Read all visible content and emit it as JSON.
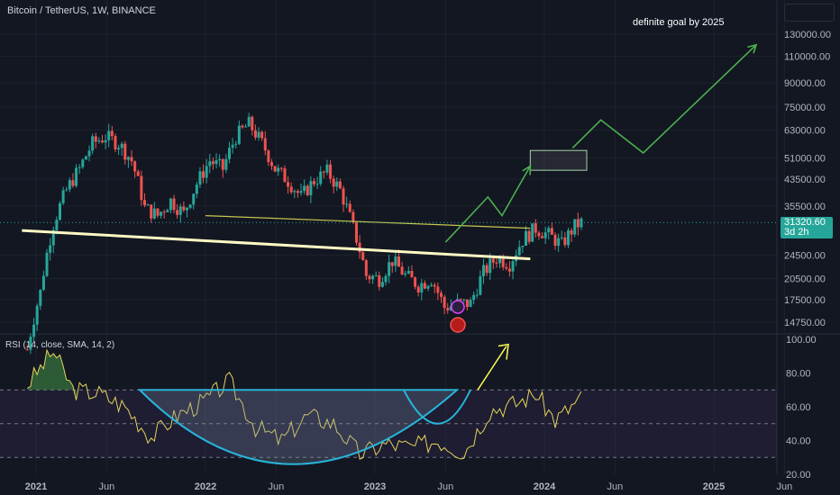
{
  "header": {
    "symbol_title": "Bitcoin / TetherUS, 1W, BINANCE"
  },
  "annotation": {
    "goal_text": "definite goal by 2025"
  },
  "price_tag": {
    "price": "31320.60",
    "countdown": "3d 2h",
    "color": "#26a69a"
  },
  "rsi_panel": {
    "title": "RSI (14, close, SMA, 14, 2)"
  },
  "chart_data": [
    {
      "type": "candlestick",
      "symbol": "BTCUSDT",
      "interval": "1W",
      "y_scale": "log",
      "ylim": [
        12000,
        150000
      ],
      "y_ticks": [
        "130000.00",
        "110000.00",
        "90000.00",
        "75000.00",
        "63000.00",
        "51000.00",
        "43500.00",
        "35500.00",
        "24500.00",
        "20500.00",
        "17500.00",
        "14750.00"
      ],
      "x_ticks": [
        "2021",
        "Jun",
        "2022",
        "Jun",
        "2023",
        "Jun",
        "2024",
        "Jun",
        "2025",
        "Jun"
      ],
      "last_price": 31320.6,
      "colors": {
        "up": "#26a69a",
        "down": "#ef5350"
      },
      "trendlines": [
        {
          "from": [
            "2020-12",
            29500
          ],
          "to": [
            "2023-12",
            23800
          ],
          "color": "#fff9c4"
        },
        {
          "from": [
            "2022-01",
            33000
          ],
          "to": [
            "2023-12",
            30000
          ],
          "color": "#c8c850"
        }
      ],
      "projection_path": [
        [
          "2023-06",
          27000
        ],
        [
          "2023-09",
          38000
        ],
        [
          "2023-10",
          33000
        ],
        [
          "2023-12",
          48000
        ],
        [
          "2024-03",
          55000
        ],
        [
          "2024-05",
          68000
        ],
        [
          "2024-08",
          53000
        ],
        [
          "2025-04",
          120000
        ]
      ],
      "projection_color": "#4caf50",
      "target_zone": {
        "from": "2023-12",
        "to": "2024-04",
        "low": 46500,
        "high": 54000
      }
    },
    {
      "type": "line",
      "name": "RSI",
      "ylim": [
        20,
        100
      ],
      "y_ticks": [
        "100.00",
        "80.00",
        "60.00",
        "40.00",
        "20.00"
      ],
      "bands": [
        30,
        50,
        70
      ],
      "line_color": "#e4d35b",
      "cup_color": "#28b4d8"
    }
  ]
}
